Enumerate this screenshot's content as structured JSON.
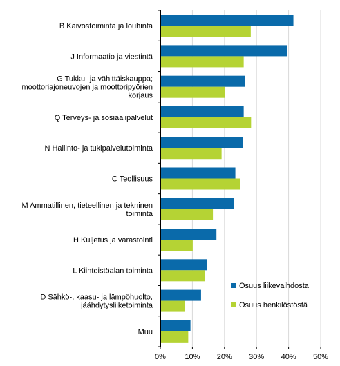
{
  "chart_data": {
    "type": "bar",
    "orientation": "horizontal",
    "title": "",
    "xlabel": "",
    "ylabel": "",
    "xlim": [
      0,
      50
    ],
    "x_ticks": [
      "0%",
      "10%",
      "20%",
      "30%",
      "40%",
      "50%"
    ],
    "grid": true,
    "legend_position": "right",
    "categories": [
      "B  Kaivostoiminta ja louhinta",
      "J  Informaatio ja viestintä",
      "G  Tukku- ja vähittäiskauppa; moottoriajoneuvojen ja moottoripyörien korjaus",
      "Q  Terveys- ja sosiaalipalvelut",
      "N  Hallinto- ja tukipalvelutoiminta",
      "C  Teollisuus",
      "M  Ammatillinen, tieteellinen ja tekninen toiminta",
      "H  Kuljetus ja varastointi",
      "L  Kiinteistöalan toiminta",
      "D  Sähkö-, kaasu- ja lämpöhuolto, jäähdytysliiketoiminta",
      "Muu"
    ],
    "category_lines": [
      [
        "B  Kaivostoiminta ja louhinta"
      ],
      [
        "J  Informaatio ja viestintä"
      ],
      [
        "G  Tukku- ja vähittäiskauppa;",
        "moottoriajoneuvojen ja moottoripyörien",
        "korjaus"
      ],
      [
        "Q  Terveys- ja sosiaalipalvelut"
      ],
      [
        "N  Hallinto- ja tukipalvelutoiminta"
      ],
      [
        "C  Teollisuus"
      ],
      [
        "M  Ammatillinen, tieteellinen ja tekninen",
        "toiminta"
      ],
      [
        "H  Kuljetus ja varastointi"
      ],
      [
        "L  Kiinteistöalan toiminta"
      ],
      [
        "D  Sähkö-, kaasu- ja lämpöhuolto,",
        "jäähdytysliiketoiminta"
      ],
      [
        "Muu"
      ]
    ],
    "series": [
      {
        "name": "Osuus liikevaihdosta",
        "color": "#0a6aaa",
        "values": [
          41.5,
          39.5,
          26.3,
          26.0,
          25.7,
          23.4,
          23.0,
          17.5,
          14.6,
          12.7,
          9.4
        ]
      },
      {
        "name": "Osuus henkilöstöstä",
        "color": "#b5d334",
        "values": [
          28.2,
          26.0,
          20.1,
          28.3,
          19.1,
          24.9,
          16.4,
          10.1,
          13.8,
          7.7,
          8.7
        ]
      }
    ]
  }
}
